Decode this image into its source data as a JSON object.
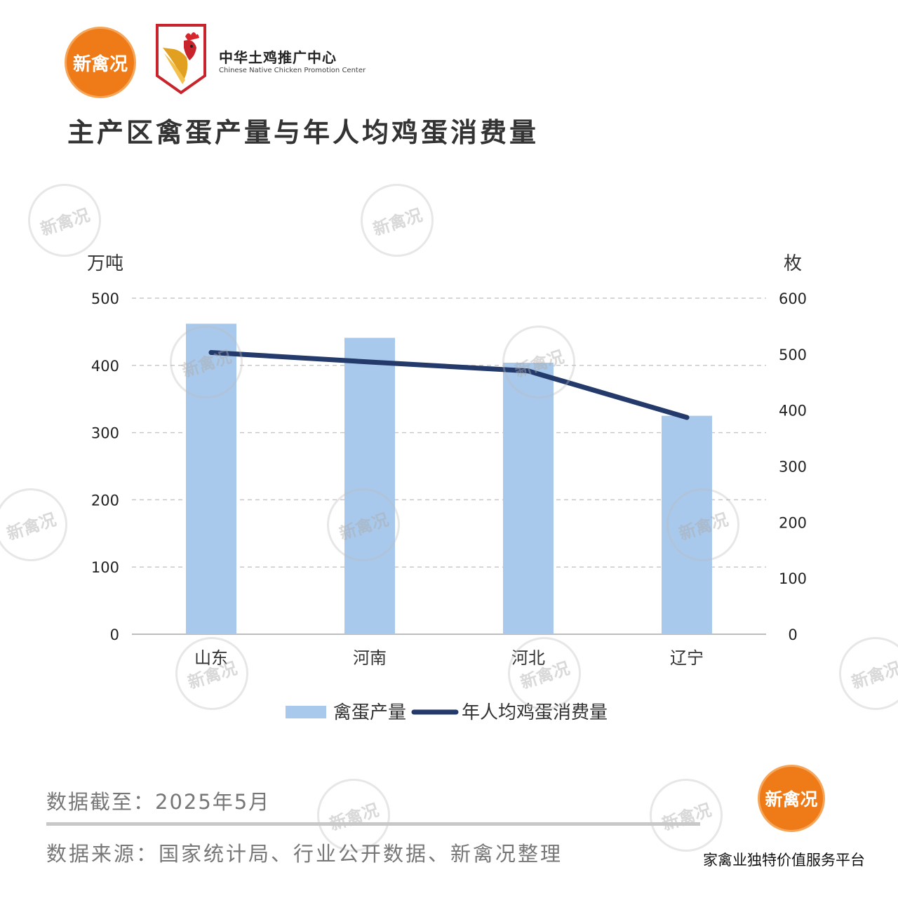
{
  "header": {
    "brand_logo_text": "新禽况",
    "partner_name_cn": "中华土鸡推广中心",
    "partner_name_en": "Chinese Native Chicken Promotion Center"
  },
  "chart_data": {
    "type": "bar+line",
    "title": "主产区禽蛋产量与年人均鸡蛋消费量",
    "categories": [
      "山东",
      "河南",
      "河北",
      "辽宁"
    ],
    "series": [
      {
        "name": "禽蛋产量",
        "type": "bar",
        "axis": "left",
        "values": [
          462,
          441,
          404,
          325
        ],
        "color": "#a9c9ec"
      },
      {
        "name": "年人均鸡蛋消费量",
        "type": "line",
        "axis": "right",
        "values": [
          503,
          486,
          470,
          387
        ],
        "color": "#233a6b"
      }
    ],
    "y_left": {
      "label": "万吨",
      "ylim": [
        0,
        500
      ],
      "ticks": [
        0,
        100,
        200,
        300,
        400,
        500
      ]
    },
    "y_right": {
      "label": "枚",
      "ylim": [
        0,
        600
      ],
      "ticks": [
        0,
        100,
        200,
        300,
        400,
        500,
        600
      ]
    },
    "grid": true,
    "legend_position": "bottom"
  },
  "footer": {
    "date_note": "数据截至：2025年5月",
    "source_note": "数据来源：国家统计局、行业公开数据、新禽况整理",
    "slogan": "家禽业独特价值服务平台"
  },
  "colors": {
    "brand_orange": "#ee7b18",
    "bar": "#a9c9ec",
    "line": "#233a6b"
  }
}
